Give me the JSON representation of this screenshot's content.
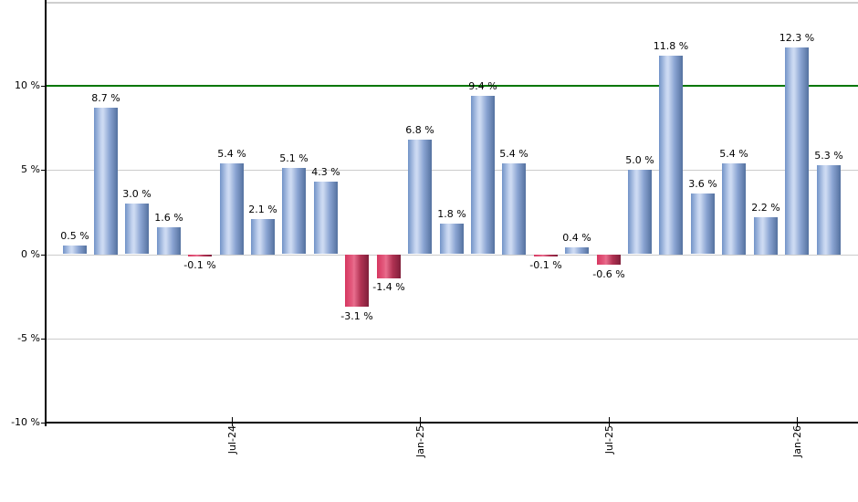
{
  "chart_data": {
    "type": "bar",
    "title": "",
    "unit": "%",
    "ylim": [
      -10,
      15
    ],
    "bars": [
      {
        "value": 0.5,
        "label": "0.5 %"
      },
      {
        "value": 8.7,
        "label": "8.7 %"
      },
      {
        "value": 3.0,
        "label": "3.0 %"
      },
      {
        "value": 1.6,
        "label": "1.6 %"
      },
      {
        "value": -0.1,
        "label": "-0.1 %"
      },
      {
        "value": 5.4,
        "label": "5.4 %"
      },
      {
        "value": 2.1,
        "label": "2.1 %"
      },
      {
        "value": 5.1,
        "label": "5.1 %"
      },
      {
        "value": 4.3,
        "label": "4.3 %"
      },
      {
        "value": -3.1,
        "label": "-3.1 %"
      },
      {
        "value": -1.4,
        "label": "-1.4 %"
      },
      {
        "value": 6.8,
        "label": "6.8 %"
      },
      {
        "value": 1.8,
        "label": "1.8 %"
      },
      {
        "value": 9.4,
        "label": "9.4 %"
      },
      {
        "value": 5.4,
        "label": "5.4 %"
      },
      {
        "value": -0.1,
        "label": "-0.1 %"
      },
      {
        "value": 0.4,
        "label": "0.4 %"
      },
      {
        "value": -0.6,
        "label": "-0.6 %"
      },
      {
        "value": 5.0,
        "label": "5.0 %"
      },
      {
        "value": 11.8,
        "label": "11.8 %"
      },
      {
        "value": 3.6,
        "label": "3.6 %"
      },
      {
        "value": 5.4,
        "label": "5.4 %"
      },
      {
        "value": 2.2,
        "label": "2.2 %"
      },
      {
        "value": 12.3,
        "label": "12.3 %"
      },
      {
        "value": 5.3,
        "label": "5.3 %"
      }
    ],
    "y_axis": {
      "ticks": [
        {
          "label": "10 %",
          "value": 10
        },
        {
          "label": "5 %",
          "value": 5
        },
        {
          "label": "0 %",
          "value": 0
        },
        {
          "label": "-5 %",
          "value": -5
        },
        {
          "label": "-10 %",
          "value": -10
        }
      ],
      "gridline_values": [
        5,
        0,
        -5
      ]
    },
    "x_axis": {
      "ticks": [
        {
          "label": "Jul-24",
          "bar_index": 5
        },
        {
          "label": "Jan-25",
          "bar_index": 11
        },
        {
          "label": "Jul-25",
          "bar_index": 17
        },
        {
          "label": "Jan-26",
          "bar_index": 23
        }
      ]
    },
    "threshold_line": {
      "value": 10,
      "color": "#007700"
    },
    "colors": {
      "positive_stops": [
        "#7293c7",
        "#c5d4ef",
        "#cfdcf3",
        "#8aa4d2",
        "#54719f"
      ],
      "negative_stops": [
        "#d63760",
        "#e45c7f",
        "#e96e8e",
        "#b13253",
        "#7f1f3a"
      ],
      "gridline": "#cccccc",
      "top_border": "#cfcfcf",
      "axis": "#000000",
      "label_text": "#000000"
    }
  }
}
